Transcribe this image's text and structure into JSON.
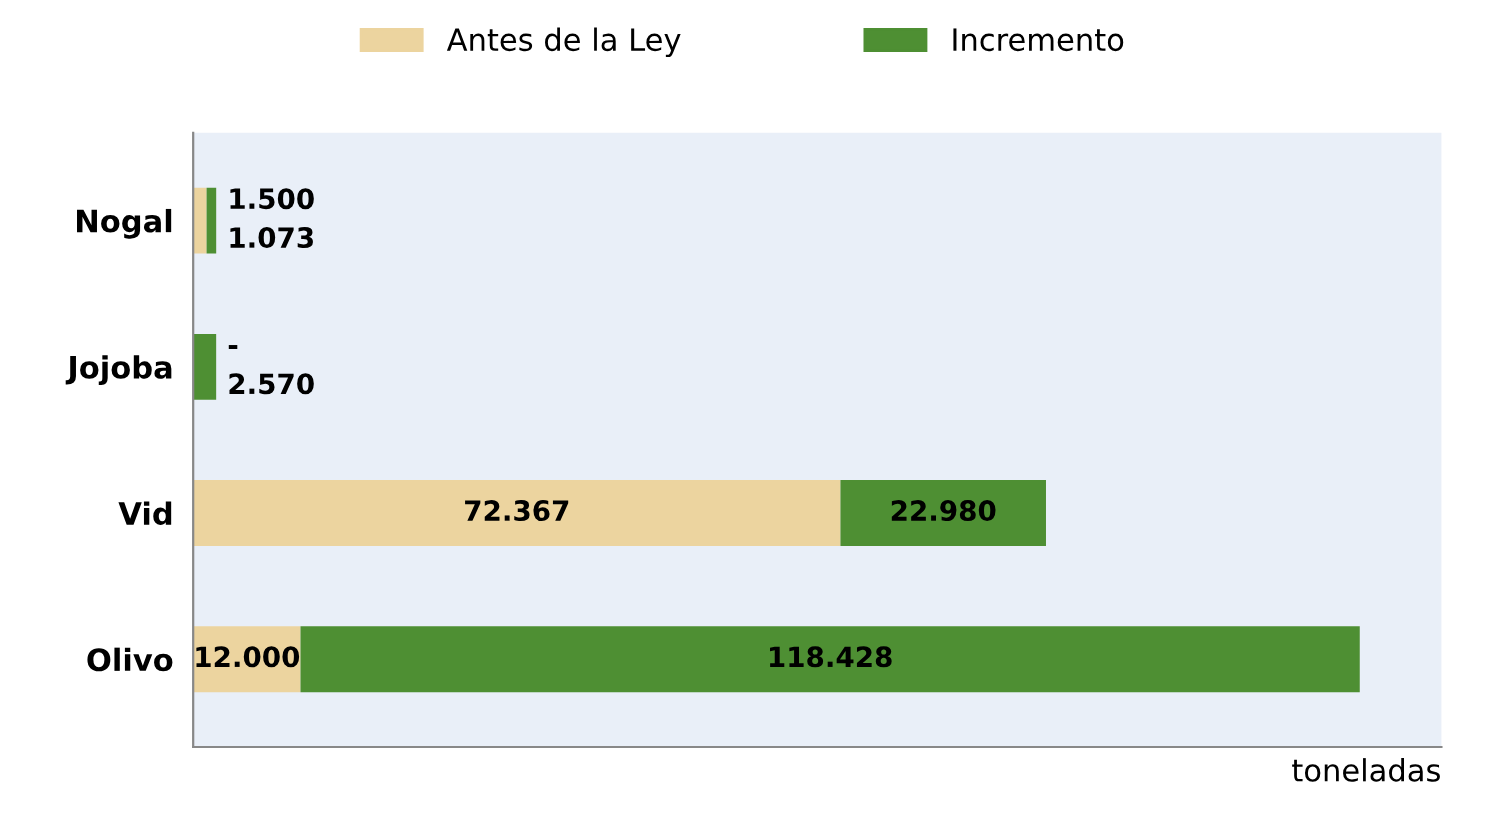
{
  "chart_data": {
    "type": "bar",
    "orientation": "horizontal",
    "stacked": true,
    "xlabel": "toneladas",
    "categories": [
      "Nogal",
      "Jojoba",
      "Vid",
      "Olivo"
    ],
    "series": [
      {
        "name": "Antes de la Ley",
        "color": "#ecd49f",
        "values": [
          1500,
          0,
          72367,
          12000
        ],
        "value_labels": [
          "1.500",
          "-",
          "72.367",
          "12.000"
        ]
      },
      {
        "name": "Incremento",
        "color": "#4e8f33",
        "values": [
          1073,
          2570,
          22980,
          118428
        ],
        "value_labels": [
          "1.073",
          "2.570",
          "22.980",
          "118.428"
        ]
      }
    ],
    "legend": "top",
    "grid": false,
    "tick_labels": "y"
  }
}
